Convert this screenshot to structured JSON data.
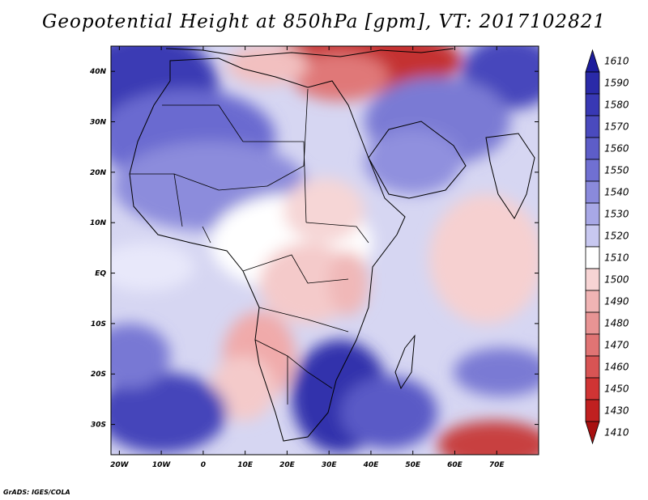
{
  "title": "Geopotential Height at 850hPa [gpm], VT: 2017102821",
  "credit": "GrADS: IGES/COLA",
  "map": {
    "lon_range": [
      -22,
      80
    ],
    "lat_range": [
      -36,
      45
    ],
    "x_ticks": [
      "20W",
      "10W",
      "0",
      "10E",
      "20E",
      "30E",
      "40E",
      "50E",
      "60E",
      "70E"
    ],
    "x_tick_values": [
      -20,
      -10,
      0,
      10,
      20,
      30,
      40,
      50,
      60,
      70
    ],
    "y_ticks": [
      "40N",
      "30N",
      "20N",
      "10N",
      "EQ",
      "10S",
      "20S",
      "30S"
    ],
    "y_tick_values": [
      40,
      30,
      20,
      10,
      0,
      -10,
      -20,
      -30
    ]
  },
  "colorbar": {
    "labels": [
      "1610",
      "1590",
      "1580",
      "1570",
      "1560",
      "1550",
      "1540",
      "1530",
      "1520",
      "1510",
      "1500",
      "1490",
      "1480",
      "1470",
      "1460",
      "1450",
      "1430",
      "1410"
    ],
    "colors": [
      "#1c1c9c",
      "#2a2aa8",
      "#3838b4",
      "#4a4abe",
      "#5d5dc8",
      "#7070d2",
      "#8a8adc",
      "#a8a8e6",
      "#c8c8f0",
      "#ffffff",
      "#f7d4d4",
      "#f0b4b4",
      "#e89494",
      "#e07474",
      "#d85454",
      "#d03434",
      "#c02020",
      "#a81010"
    ]
  }
}
